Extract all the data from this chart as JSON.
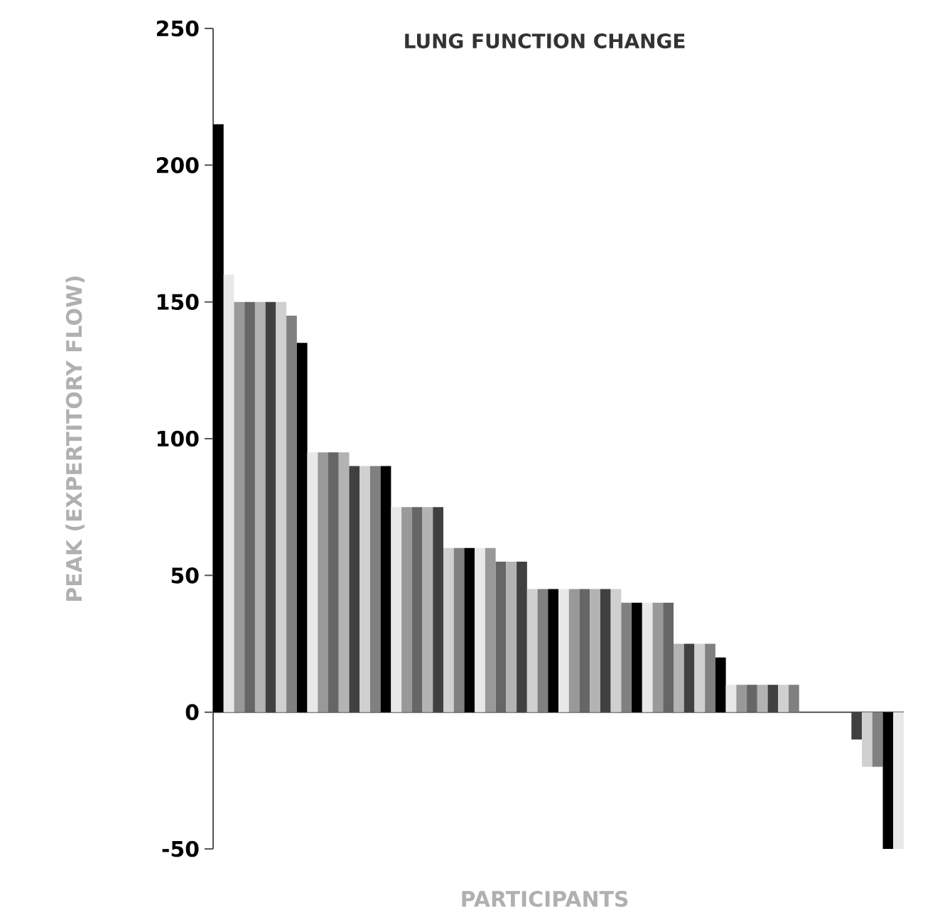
{
  "chart_data": {
    "type": "bar",
    "title": "LUNG FUNCTION CHANGE",
    "xlabel": "PARTICIPANTS",
    "ylabel": "PEAK (EXPERTITORY FLOW)",
    "categories": [
      null,
      null,
      null,
      null,
      null,
      null,
      null,
      null,
      null,
      null,
      null,
      null,
      null,
      null,
      null,
      null,
      null,
      null,
      null,
      null,
      null,
      null,
      null,
      null,
      null,
      null,
      null,
      null,
      null,
      null,
      null,
      null,
      null,
      null,
      null,
      null,
      null,
      null,
      null,
      null,
      null,
      null,
      null,
      null,
      null,
      null,
      null,
      null,
      null,
      null,
      null,
      null,
      null,
      null,
      null,
      null,
      null,
      null,
      null,
      null,
      null,
      null,
      null,
      null,
      null,
      null
    ],
    "values": [
      215,
      160,
      150,
      150,
      150,
      150,
      150,
      145,
      135,
      95,
      95,
      95,
      95,
      90,
      90,
      90,
      90,
      75,
      75,
      75,
      75,
      75,
      60,
      60,
      60,
      60,
      60,
      55,
      55,
      55,
      45,
      45,
      45,
      45,
      45,
      45,
      45,
      45,
      45,
      40,
      40,
      40,
      40,
      40,
      25,
      25,
      25,
      25,
      20,
      10,
      10,
      10,
      10,
      10,
      10,
      10,
      0,
      0,
      0,
      0,
      0,
      -10,
      -20,
      -20,
      -50,
      -50
    ],
    "colors": [
      "#000000",
      "#e8e8e8",
      "#999999",
      "#666666",
      "#b3b3b3",
      "#404040",
      "#d0d0d0",
      "#808080",
      "#000000",
      "#e8e8e8",
      "#999999",
      "#666666",
      "#b3b3b3",
      "#404040",
      "#d0d0d0",
      "#808080",
      "#000000",
      "#e8e8e8",
      "#999999",
      "#666666",
      "#b3b3b3",
      "#404040",
      "#d0d0d0",
      "#808080",
      "#000000",
      "#e8e8e8",
      "#999999",
      "#666666",
      "#b3b3b3",
      "#404040",
      "#d0d0d0",
      "#808080",
      "#000000",
      "#e8e8e8",
      "#999999",
      "#666666",
      "#b3b3b3",
      "#404040",
      "#d0d0d0",
      "#808080",
      "#000000",
      "#e8e8e8",
      "#999999",
      "#666666",
      "#b3b3b3",
      "#404040",
      "#d0d0d0",
      "#808080",
      "#000000",
      "#e8e8e8",
      "#999999",
      "#666666",
      "#b3b3b3",
      "#404040",
      "#d0d0d0",
      "#808080",
      "#000000",
      "#e8e8e8",
      "#999999",
      "#666666",
      "#b3b3b3",
      "#404040",
      "#d0d0d0",
      "#808080",
      "#000000",
      "#e8e8e8"
    ],
    "ylim": [
      -50,
      250
    ],
    "yticks": [
      -50,
      0,
      50,
      100,
      150,
      200,
      250
    ],
    "tick_labels": "y"
  }
}
